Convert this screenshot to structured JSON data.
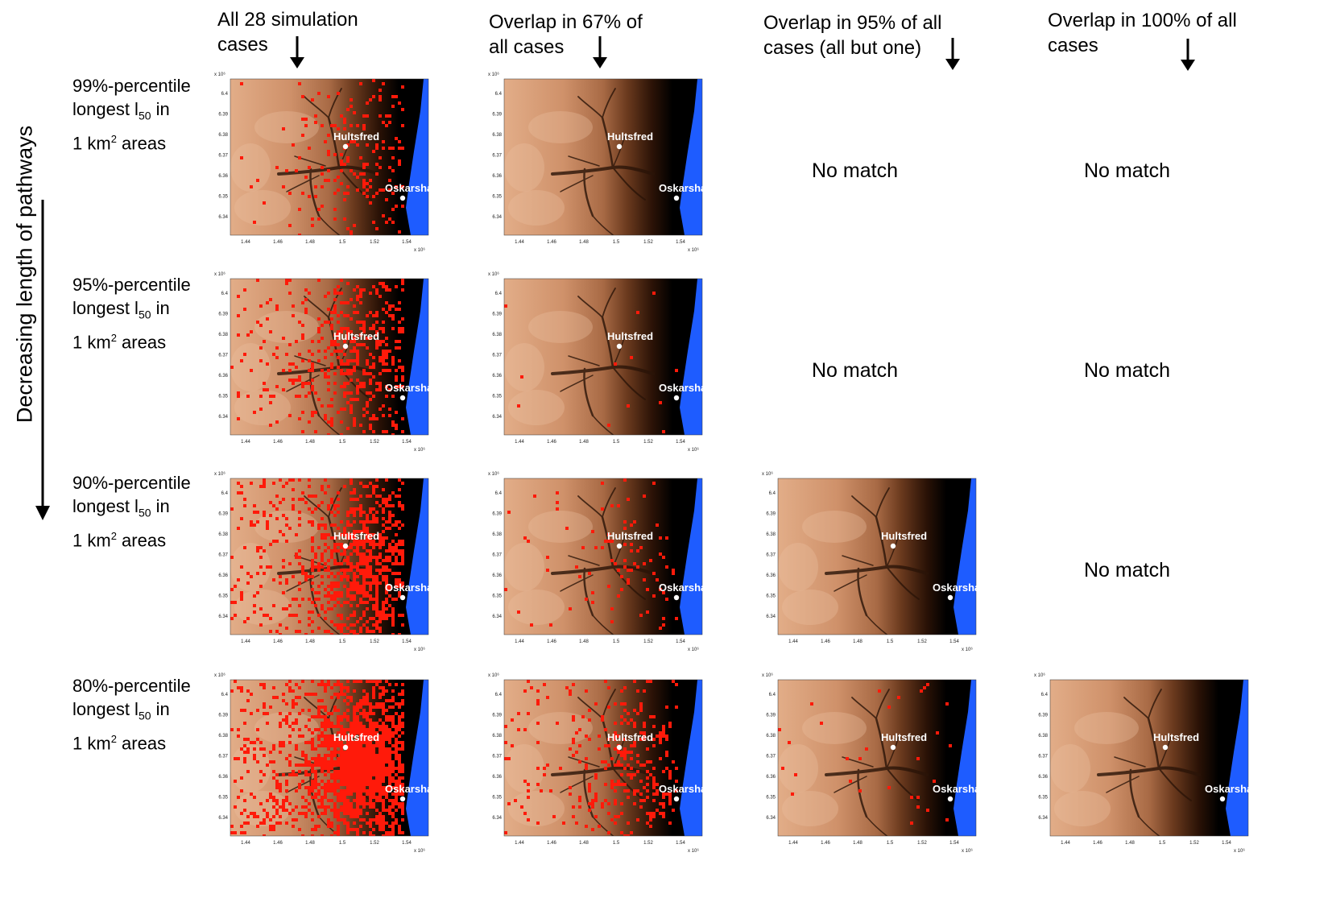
{
  "columns": [
    {
      "id": "all",
      "header": "All 28 simulation cases"
    },
    {
      "id": "o67",
      "header": "Overlap in 67% of all cases"
    },
    {
      "id": "o95",
      "header": "Overlap in 95% of all cases (all but one)"
    },
    {
      "id": "o100",
      "header": "Overlap in 100% of all cases"
    }
  ],
  "header_lines": {
    "all": [
      "All 28 simulation",
      "cases"
    ],
    "o67": [
      "Overlap in 67% of",
      "all cases"
    ],
    "o95": [
      "Overlap in 95% of all",
      "cases (all but one)"
    ],
    "o100": [
      "Overlap in 100% of all",
      "cases"
    ]
  },
  "side_axis_label": "Decreasing length of pathways",
  "rows": [
    {
      "line1": "99%-percentile",
      "line2_pre": "longest l",
      "line2_sub": "50",
      "line2_post": " in",
      "line3_pre": "1 km",
      "line3_sup": "2",
      "line3_post": " areas"
    },
    {
      "line1": "95%-percentile",
      "line2_pre": "longest l",
      "line2_sub": "50",
      "line2_post": " in",
      "line3_pre": "1 km",
      "line3_sup": "2",
      "line3_post": " areas"
    },
    {
      "line1": "90%-percentile",
      "line2_pre": "longest l",
      "line2_sub": "50",
      "line2_post": " in",
      "line3_pre": "1 km",
      "line3_sup": "2",
      "line3_post": " areas"
    },
    {
      "line1": "80%-percentile",
      "line2_pre": "longest l",
      "line2_sub": "50",
      "line2_post": " in",
      "line3_pre": "1 km",
      "line3_sup": "2",
      "line3_post": " areas"
    }
  ],
  "no_match_text": "No match",
  "matrix": [
    [
      "map",
      "map",
      "none",
      "none"
    ],
    [
      "map",
      "map",
      "none",
      "none"
    ],
    [
      "map",
      "map",
      "map",
      "none"
    ],
    [
      "map",
      "map",
      "map",
      "map"
    ]
  ],
  "red_density": [
    [
      0.14,
      0.0,
      0,
      0
    ],
    [
      0.34,
      0.01,
      0,
      0
    ],
    [
      0.5,
      0.06,
      0.0,
      0
    ],
    [
      0.8,
      0.22,
      0.02,
      0.0
    ]
  ],
  "map": {
    "town1": "Hultsfred",
    "town2": "Oskarshamn",
    "x_ticks": [
      "1.44",
      "1.46",
      "1.48",
      "1.5",
      "1.52",
      "1.54"
    ],
    "y_ticks": [
      "6.4",
      "6.39",
      "6.38",
      "6.37",
      "6.36",
      "6.35",
      "6.34"
    ],
    "x_exponent": "x 10⁶",
    "y_exponent": "x 10⁶"
  },
  "colors": {
    "highlight": "#ff1a0a",
    "sea": "#1e5cff",
    "terrain_light": "#e0a882",
    "terrain_dark": "#000000"
  }
}
